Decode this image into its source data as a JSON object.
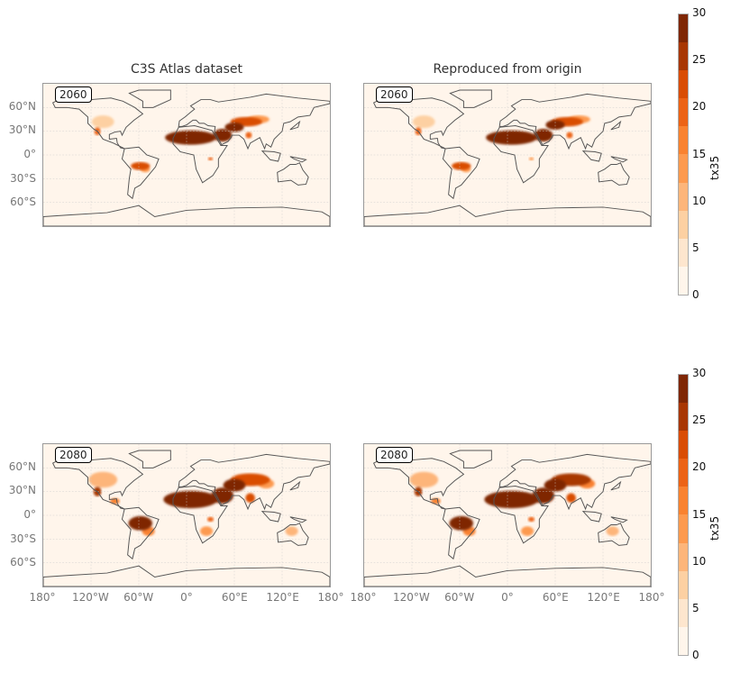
{
  "titles": {
    "left": "C3S Atlas dataset",
    "right": "Reproduced from origin"
  },
  "rows": [
    {
      "year": "2060"
    },
    {
      "year": "2080"
    }
  ],
  "lat_ticks": [
    {
      "v": 60,
      "label": "60°N"
    },
    {
      "v": 30,
      "label": "30°N"
    },
    {
      "v": 0,
      "label": "0°"
    },
    {
      "v": -30,
      "label": "30°S"
    },
    {
      "v": -60,
      "label": "60°S"
    }
  ],
  "lon_ticks": [
    {
      "v": -180,
      "label": "180°"
    },
    {
      "v": -120,
      "label": "120°W"
    },
    {
      "v": -60,
      "label": "60°W"
    },
    {
      "v": 0,
      "label": "0°"
    },
    {
      "v": 60,
      "label": "60°E"
    },
    {
      "v": 120,
      "label": "120°E"
    },
    {
      "v": 180,
      "label": "180°"
    }
  ],
  "colorbar": {
    "label": "tx35",
    "ticks": [
      "0",
      "5",
      "10",
      "15",
      "20",
      "25",
      "30"
    ],
    "min": 0,
    "max": 30,
    "colors": [
      "#fff5eb",
      "#fee6ce",
      "#fdd0a2",
      "#fdb57a",
      "#fd9a4f",
      "#f98230",
      "#ec6316",
      "#d94d04",
      "#a83703",
      "#7f2704"
    ]
  },
  "chart_data": {
    "type": "heatmap",
    "variable": "tx35",
    "units_range": [
      0,
      30
    ],
    "panels": [
      {
        "row": 0,
        "col": 0,
        "hotspots": [
          [
            -105,
            42,
            14,
            8,
            6
          ],
          [
            -112,
            30,
            4,
            5,
            20
          ],
          [
            -58,
            -14,
            12,
            5,
            22
          ],
          [
            -52,
            -18,
            6,
            4,
            12
          ],
          [
            5,
            22,
            32,
            9,
            29
          ],
          [
            45,
            25,
            12,
            8,
            29
          ],
          [
            60,
            35,
            12,
            6,
            27
          ],
          [
            75,
            42,
            20,
            6,
            22
          ],
          [
            90,
            45,
            14,
            5,
            14
          ],
          [
            30,
            -5,
            3,
            2,
            18
          ],
          [
            78,
            25,
            4,
            4,
            18
          ]
        ]
      },
      {
        "row": 0,
        "col": 1,
        "hotspots": [
          [
            -105,
            42,
            14,
            8,
            6
          ],
          [
            -112,
            30,
            4,
            5,
            20
          ],
          [
            -58,
            -14,
            12,
            5,
            22
          ],
          [
            -52,
            -18,
            6,
            4,
            12
          ],
          [
            5,
            22,
            32,
            9,
            29
          ],
          [
            45,
            25,
            12,
            8,
            29
          ],
          [
            60,
            38,
            12,
            6,
            27
          ],
          [
            75,
            42,
            20,
            6,
            22
          ],
          [
            90,
            45,
            14,
            5,
            14
          ],
          [
            30,
            -5,
            3,
            2,
            14
          ],
          [
            78,
            25,
            4,
            4,
            18
          ]
        ]
      },
      {
        "row": 1,
        "col": 0,
        "hotspots": [
          [
            -105,
            45,
            18,
            10,
            10
          ],
          [
            -112,
            30,
            5,
            6,
            25
          ],
          [
            -90,
            18,
            6,
            4,
            15
          ],
          [
            -58,
            -10,
            15,
            9,
            29
          ],
          [
            -48,
            -20,
            8,
            6,
            15
          ],
          [
            5,
            20,
            34,
            11,
            29
          ],
          [
            45,
            25,
            14,
            10,
            29
          ],
          [
            60,
            38,
            14,
            8,
            27
          ],
          [
            80,
            45,
            25,
            8,
            22
          ],
          [
            100,
            40,
            10,
            6,
            14
          ],
          [
            25,
            -20,
            8,
            6,
            14
          ],
          [
            30,
            -5,
            4,
            3,
            18
          ],
          [
            80,
            22,
            6,
            6,
            22
          ],
          [
            132,
            -20,
            8,
            6,
            10
          ],
          [
            -20,
            -10,
            1,
            1,
            0
          ]
        ]
      },
      {
        "row": 1,
        "col": 1,
        "hotspots": [
          [
            -105,
            45,
            18,
            10,
            10
          ],
          [
            -112,
            30,
            5,
            6,
            25
          ],
          [
            -90,
            18,
            6,
            4,
            15
          ],
          [
            -58,
            -10,
            15,
            9,
            29
          ],
          [
            -48,
            -20,
            8,
            6,
            15
          ],
          [
            5,
            20,
            34,
            11,
            29
          ],
          [
            45,
            25,
            14,
            10,
            29
          ],
          [
            60,
            38,
            14,
            8,
            27
          ],
          [
            80,
            45,
            25,
            8,
            24
          ],
          [
            100,
            40,
            10,
            6,
            16
          ],
          [
            25,
            -20,
            8,
            6,
            14
          ],
          [
            30,
            -5,
            4,
            3,
            18
          ],
          [
            80,
            22,
            6,
            6,
            22
          ],
          [
            132,
            -20,
            8,
            6,
            10
          ],
          [
            -20,
            -10,
            1,
            1,
            0
          ]
        ]
      }
    ]
  }
}
